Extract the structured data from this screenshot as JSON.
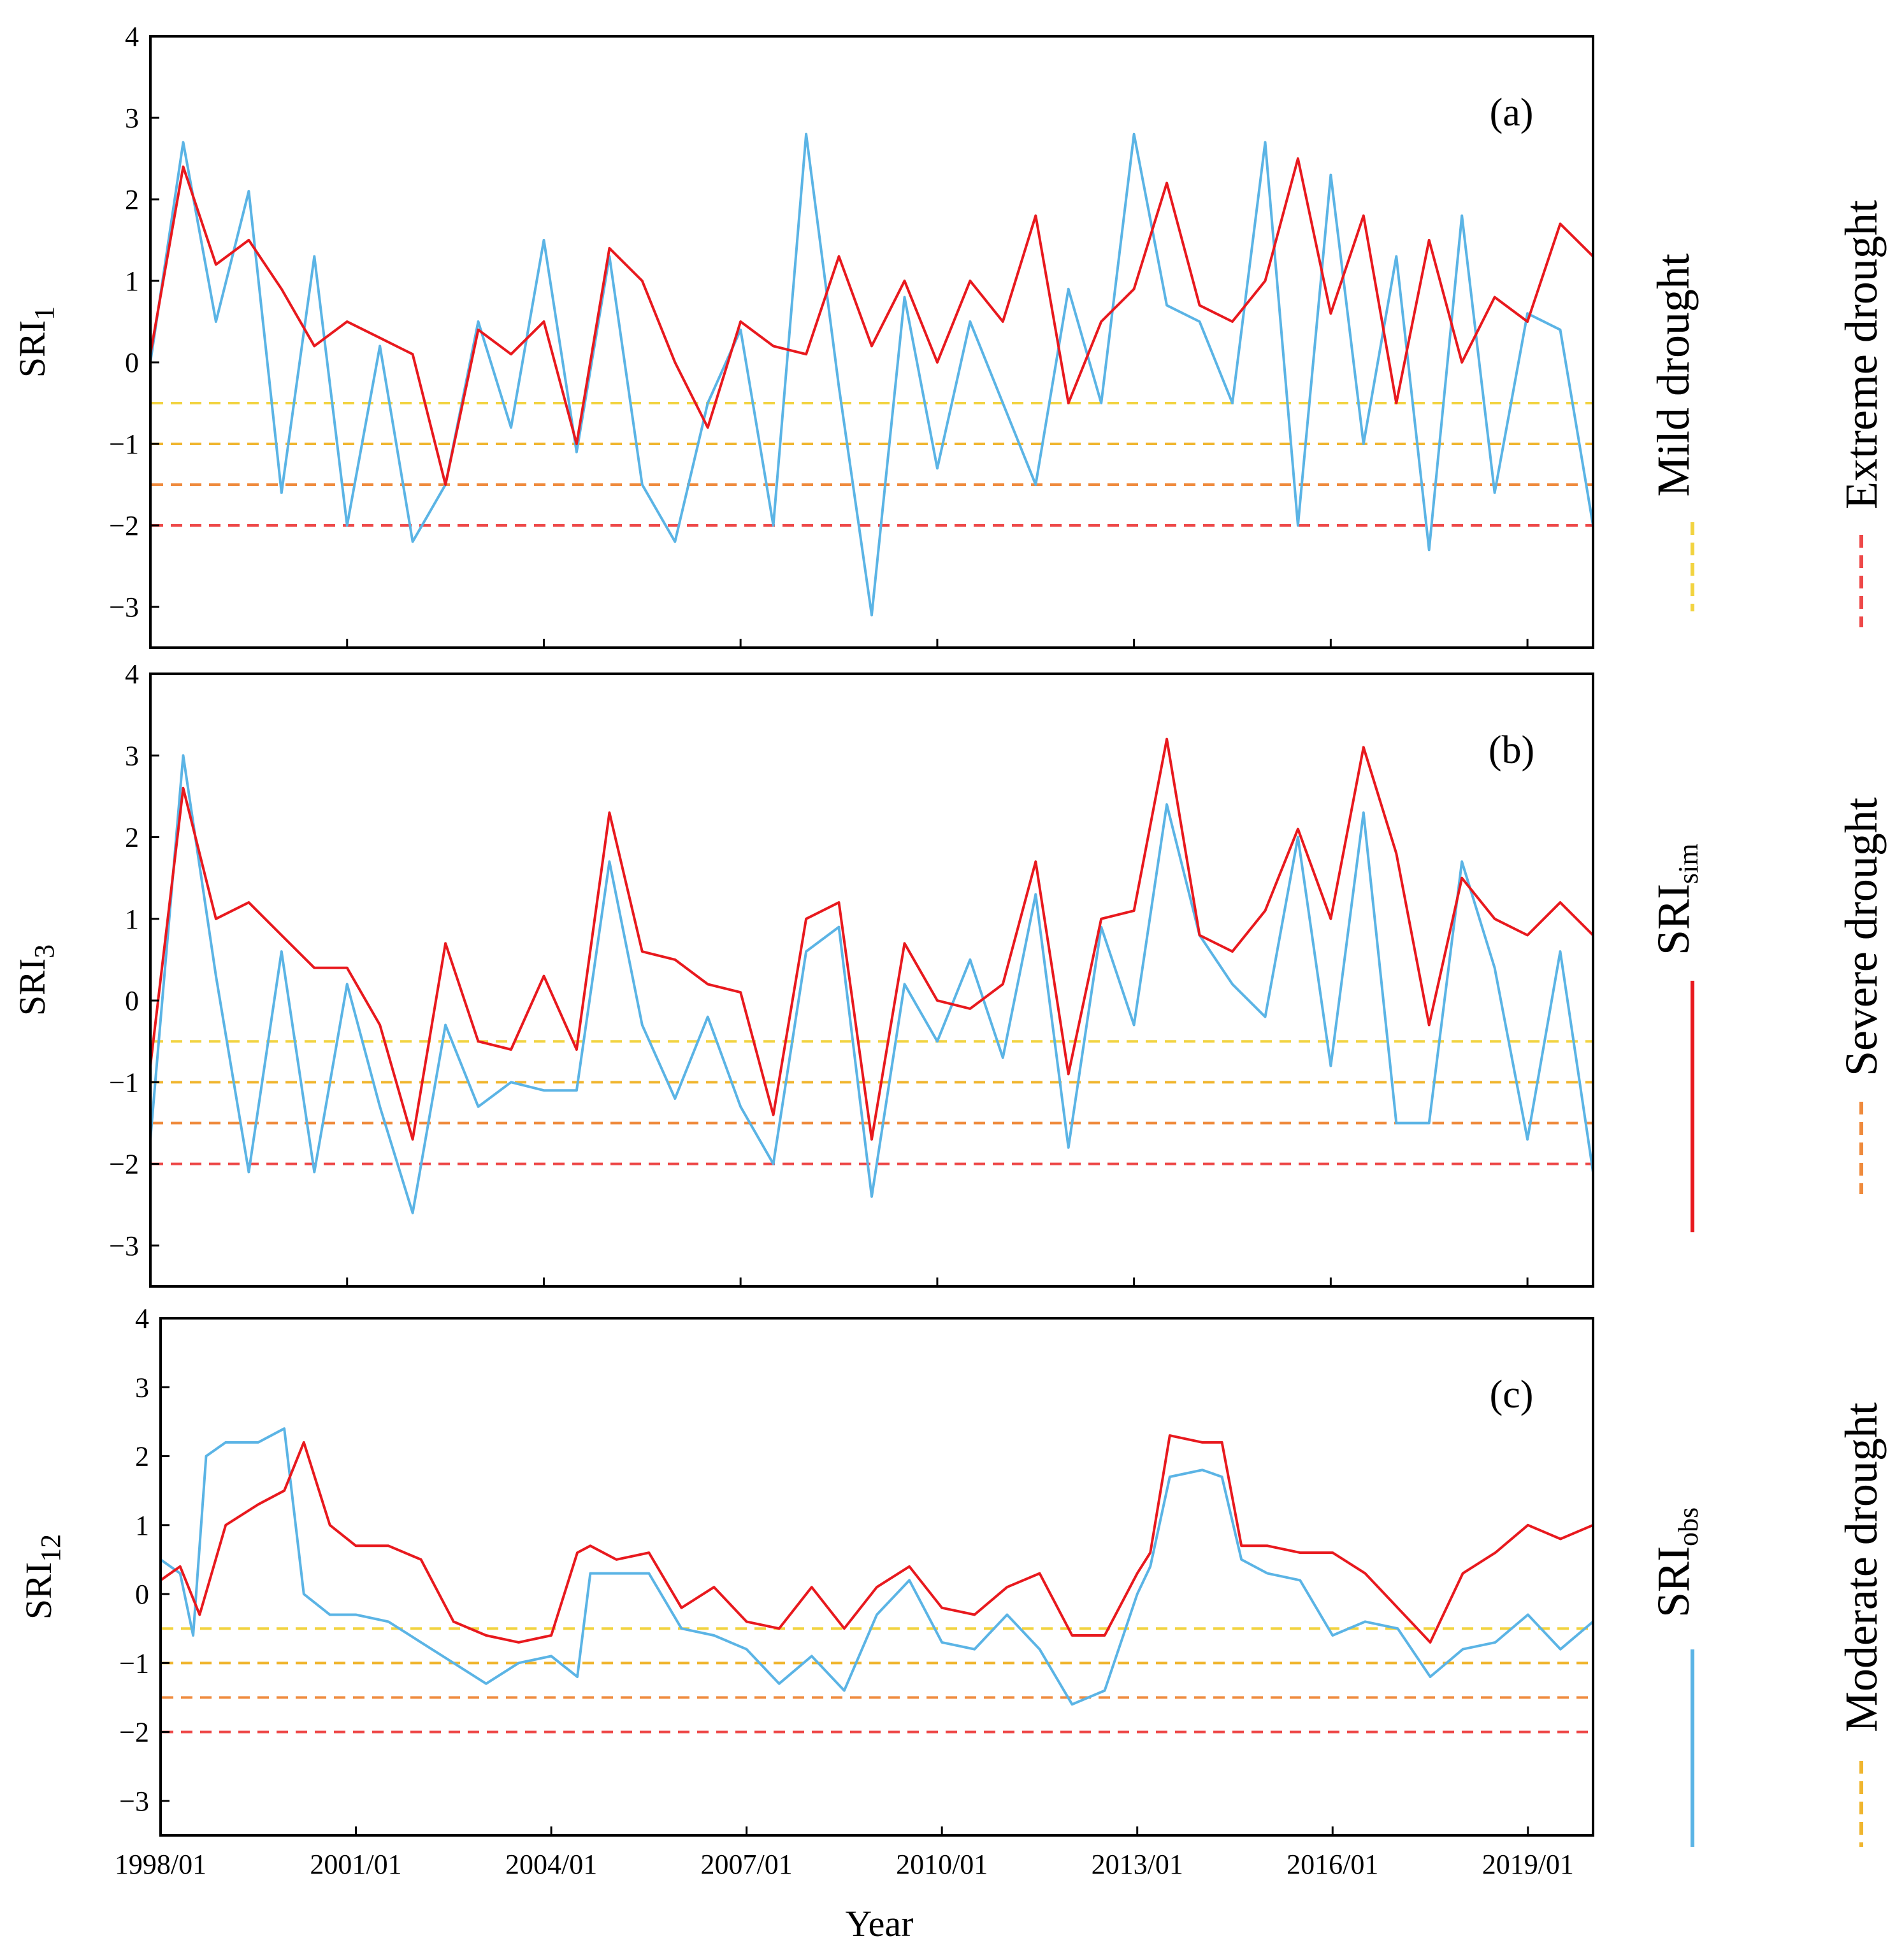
{
  "chart_data": {
    "type": "line",
    "xlabel": "Year",
    "x_tick_labels": [
      "1998/01",
      "2001/01",
      "2004/01",
      "2007/01",
      "2010/01",
      "2013/01",
      "2016/01",
      "2019/01"
    ],
    "x_tick_years": [
      1998,
      2001,
      2004,
      2007,
      2010,
      2013,
      2016,
      2019
    ],
    "xlim": [
      1998.0,
      2020.0
    ],
    "y_tick_labels": [
      "4",
      "3",
      "2",
      "1",
      "0",
      "−1",
      "−2",
      "−3"
    ],
    "y_tick_values": [
      4,
      3,
      2,
      1,
      0,
      -1,
      -2,
      -3
    ],
    "ylim": [
      -3.5,
      4
    ],
    "thresholds": [
      {
        "name": "Mild drought",
        "value": -0.5,
        "color": "#F2D340"
      },
      {
        "name": "Moderate drought",
        "value": -1.0,
        "color": "#F0B52E"
      },
      {
        "name": "Severe drought",
        "value": -1.5,
        "color": "#EF8A3C"
      },
      {
        "name": "Extreme drought",
        "value": -2.0,
        "color": "#EE4848"
      }
    ],
    "series_styles": {
      "sim": {
        "color": "#E8191E"
      },
      "obs": {
        "color": "#5BB4E5"
      }
    },
    "panels": [
      {
        "label": "(a)",
        "ylabel_main": "SRI",
        "ylabel_sub": "1",
        "series": [
          {
            "name": "SRIsim",
            "x": [
              1998.0,
              1998.5,
              1999.0,
              1999.5,
              2000.0,
              2000.5,
              2001.0,
              2001.5,
              2002.0,
              2002.5,
              2003.0,
              2003.5,
              2004.0,
              2004.5,
              2005.0,
              2005.5,
              2006.0,
              2006.5,
              2007.0,
              2007.5,
              2008.0,
              2008.5,
              2009.0,
              2009.5,
              2010.0,
              2010.5,
              2011.0,
              2011.5,
              2012.0,
              2012.5,
              2013.0,
              2013.5,
              2014.0,
              2014.5,
              2015.0,
              2015.5,
              2016.0,
              2016.5,
              2017.0,
              2017.5,
              2018.0,
              2018.5,
              2019.0,
              2019.5,
              2020.0
            ],
            "values": [
              0.1,
              2.4,
              1.2,
              1.5,
              0.9,
              0.2,
              0.5,
              0.3,
              0.1,
              -1.5,
              0.4,
              0.1,
              0.5,
              -1.0,
              1.4,
              1.0,
              0.0,
              -0.8,
              0.5,
              0.2,
              0.1,
              1.3,
              0.2,
              1.0,
              0.0,
              1.0,
              0.5,
              1.8,
              -0.5,
              0.5,
              0.9,
              2.2,
              0.7,
              0.5,
              1.0,
              2.5,
              0.6,
              1.8,
              -0.5,
              1.5,
              0.0,
              0.8,
              0.5,
              1.7,
              1.3
            ]
          },
          {
            "name": "SRIobs",
            "x": [
              1998.0,
              1998.5,
              1999.0,
              1999.5,
              2000.0,
              2000.5,
              2001.0,
              2001.5,
              2002.0,
              2002.5,
              2003.0,
              2003.5,
              2004.0,
              2004.5,
              2005.0,
              2005.5,
              2006.0,
              2006.5,
              2007.0,
              2007.5,
              2008.0,
              2008.5,
              2009.0,
              2009.5,
              2010.0,
              2010.5,
              2011.0,
              2011.5,
              2012.0,
              2012.5,
              2013.0,
              2013.5,
              2014.0,
              2014.5,
              2015.0,
              2015.5,
              2016.0,
              2016.5,
              2017.0,
              2017.5,
              2018.0,
              2018.5,
              2019.0,
              2019.5,
              2020.0
            ],
            "values": [
              0.0,
              2.7,
              0.5,
              2.1,
              -1.6,
              1.3,
              -2.0,
              0.2,
              -2.2,
              -1.5,
              0.5,
              -0.8,
              1.5,
              -1.1,
              1.3,
              -1.5,
              -2.2,
              -0.5,
              0.4,
              -2.0,
              2.8,
              -0.3,
              -3.1,
              0.8,
              -1.3,
              0.5,
              -0.5,
              -1.5,
              0.9,
              -0.5,
              2.8,
              0.7,
              0.5,
              -0.5,
              2.7,
              -2.0,
              2.3,
              -1.0,
              1.3,
              -2.3,
              1.8,
              -1.6,
              0.6,
              0.4,
              -2.0
            ]
          }
        ]
      },
      {
        "label": "(b)",
        "ylabel_main": "SRI",
        "ylabel_sub": "3",
        "series": [
          {
            "name": "SRIsim",
            "x": [
              1998.0,
              1998.5,
              1999.0,
              1999.5,
              2000.0,
              2000.5,
              2001.0,
              2001.5,
              2002.0,
              2002.5,
              2003.0,
              2003.5,
              2004.0,
              2004.5,
              2005.0,
              2005.5,
              2006.0,
              2006.5,
              2007.0,
              2007.5,
              2008.0,
              2008.5,
              2009.0,
              2009.5,
              2010.0,
              2010.5,
              2011.0,
              2011.5,
              2012.0,
              2012.5,
              2013.0,
              2013.5,
              2014.0,
              2014.5,
              2015.0,
              2015.5,
              2016.0,
              2016.5,
              2017.0,
              2017.5,
              2018.0,
              2018.5,
              2019.0,
              2019.5,
              2020.0
            ],
            "values": [
              -0.8,
              2.6,
              1.0,
              1.2,
              0.8,
              0.4,
              0.4,
              -0.3,
              -1.7,
              0.7,
              -0.5,
              -0.6,
              0.3,
              -0.6,
              2.3,
              0.6,
              0.5,
              0.2,
              0.1,
              -1.4,
              1.0,
              1.2,
              -1.7,
              0.7,
              0.0,
              -0.1,
              0.2,
              1.7,
              -0.9,
              1.0,
              1.1,
              3.2,
              0.8,
              0.6,
              1.1,
              2.1,
              1.0,
              3.1,
              1.8,
              -0.3,
              1.5,
              1.0,
              0.8,
              1.2,
              0.8
            ]
          },
          {
            "name": "SRIobs",
            "x": [
              1998.0,
              1998.5,
              1999.0,
              1999.5,
              2000.0,
              2000.5,
              2001.0,
              2001.5,
              2002.0,
              2002.5,
              2003.0,
              2003.5,
              2004.0,
              2004.5,
              2005.0,
              2005.5,
              2006.0,
              2006.5,
              2007.0,
              2007.5,
              2008.0,
              2008.5,
              2009.0,
              2009.5,
              2010.0,
              2010.5,
              2011.0,
              2011.5,
              2012.0,
              2012.5,
              2013.0,
              2013.5,
              2014.0,
              2014.5,
              2015.0,
              2015.5,
              2016.0,
              2016.5,
              2017.0,
              2017.5,
              2018.0,
              2018.5,
              2019.0,
              2019.5,
              2020.0
            ],
            "values": [
              -1.7,
              3.0,
              0.3,
              -2.1,
              0.6,
              -2.1,
              0.2,
              -1.3,
              -2.6,
              -0.3,
              -1.3,
              -1.0,
              -1.1,
              -1.1,
              1.7,
              -0.3,
              -1.2,
              -0.2,
              -1.3,
              -2.0,
              0.6,
              0.9,
              -2.4,
              0.2,
              -0.5,
              0.5,
              -0.7,
              1.3,
              -1.8,
              0.9,
              -0.3,
              2.4,
              0.8,
              0.2,
              -0.2,
              2.0,
              -0.8,
              2.3,
              -1.5,
              -1.5,
              1.7,
              0.4,
              -1.7,
              0.6,
              -2.1
            ]
          }
        ]
      },
      {
        "label": "(c)",
        "ylabel_main": "SRI",
        "ylabel_sub": "12",
        "series": [
          {
            "name": "SRIsim",
            "x": [
              1998.0,
              1998.3,
              1998.6,
              1999.0,
              1999.5,
              1999.9,
              2000.2,
              2000.6,
              2001.0,
              2001.5,
              2002.0,
              2002.5,
              2003.0,
              2003.5,
              2004.0,
              2004.4,
              2004.6,
              2005.0,
              2005.5,
              2006.0,
              2006.5,
              2007.0,
              2007.5,
              2008.0,
              2008.5,
              2009.0,
              2009.5,
              2010.0,
              2010.5,
              2011.0,
              2011.5,
              2012.0,
              2012.5,
              2013.0,
              2013.2,
              2013.5,
              2014.0,
              2014.3,
              2014.6,
              2015.0,
              2015.5,
              2016.0,
              2016.5,
              2017.0,
              2017.5,
              2018.0,
              2018.5,
              2019.0,
              2019.5,
              2020.0
            ],
            "values": [
              0.2,
              0.4,
              -0.3,
              1.0,
              1.3,
              1.5,
              2.2,
              1.0,
              0.7,
              0.7,
              0.5,
              -0.4,
              -0.6,
              -0.7,
              -0.6,
              0.6,
              0.7,
              0.5,
              0.6,
              -0.2,
              0.1,
              -0.4,
              -0.5,
              0.1,
              -0.5,
              0.1,
              0.4,
              -0.2,
              -0.3,
              0.1,
              0.3,
              -0.6,
              -0.6,
              0.3,
              0.6,
              2.3,
              2.2,
              2.2,
              0.7,
              0.7,
              0.6,
              0.6,
              0.3,
              -0.2,
              -0.7,
              0.3,
              0.6,
              1.0,
              0.8,
              1.0
            ]
          },
          {
            "name": "SRIobs",
            "x": [
              1998.0,
              1998.3,
              1998.5,
              1998.7,
              1999.0,
              1999.5,
              1999.9,
              2000.2,
              2000.6,
              2001.0,
              2001.5,
              2002.0,
              2002.5,
              2003.0,
              2003.5,
              2004.0,
              2004.4,
              2004.6,
              2005.0,
              2005.5,
              2006.0,
              2006.5,
              2007.0,
              2007.5,
              2008.0,
              2008.5,
              2009.0,
              2009.5,
              2010.0,
              2010.5,
              2011.0,
              2011.5,
              2012.0,
              2012.5,
              2013.0,
              2013.2,
              2013.5,
              2014.0,
              2014.3,
              2014.6,
              2015.0,
              2015.5,
              2016.0,
              2016.5,
              2017.0,
              2017.5,
              2018.0,
              2018.5,
              2019.0,
              2019.5,
              2020.0
            ],
            "values": [
              0.5,
              0.3,
              -0.6,
              2.0,
              2.2,
              2.2,
              2.4,
              0.0,
              -0.3,
              -0.3,
              -0.4,
              -0.7,
              -1.0,
              -1.3,
              -1.0,
              -0.9,
              -1.2,
              0.3,
              0.3,
              0.3,
              -0.5,
              -0.6,
              -0.8,
              -1.3,
              -0.9,
              -1.4,
              -0.3,
              0.2,
              -0.7,
              -0.8,
              -0.3,
              -0.8,
              -1.6,
              -1.4,
              0.0,
              0.4,
              1.7,
              1.8,
              1.7,
              0.5,
              0.3,
              0.2,
              -0.6,
              -0.4,
              -0.5,
              -1.2,
              -0.8,
              -0.7,
              -0.3,
              -0.8,
              -0.4
            ]
          }
        ]
      }
    ],
    "legend": {
      "sim_label_main": "SRI",
      "sim_label_sub": "sim",
      "obs_label_main": "SRI",
      "obs_label_sub": "obs",
      "mild": "Mild drought",
      "moderate": "Moderate drought",
      "severe": "Severe drought",
      "extreme": "Extreme drought"
    }
  }
}
